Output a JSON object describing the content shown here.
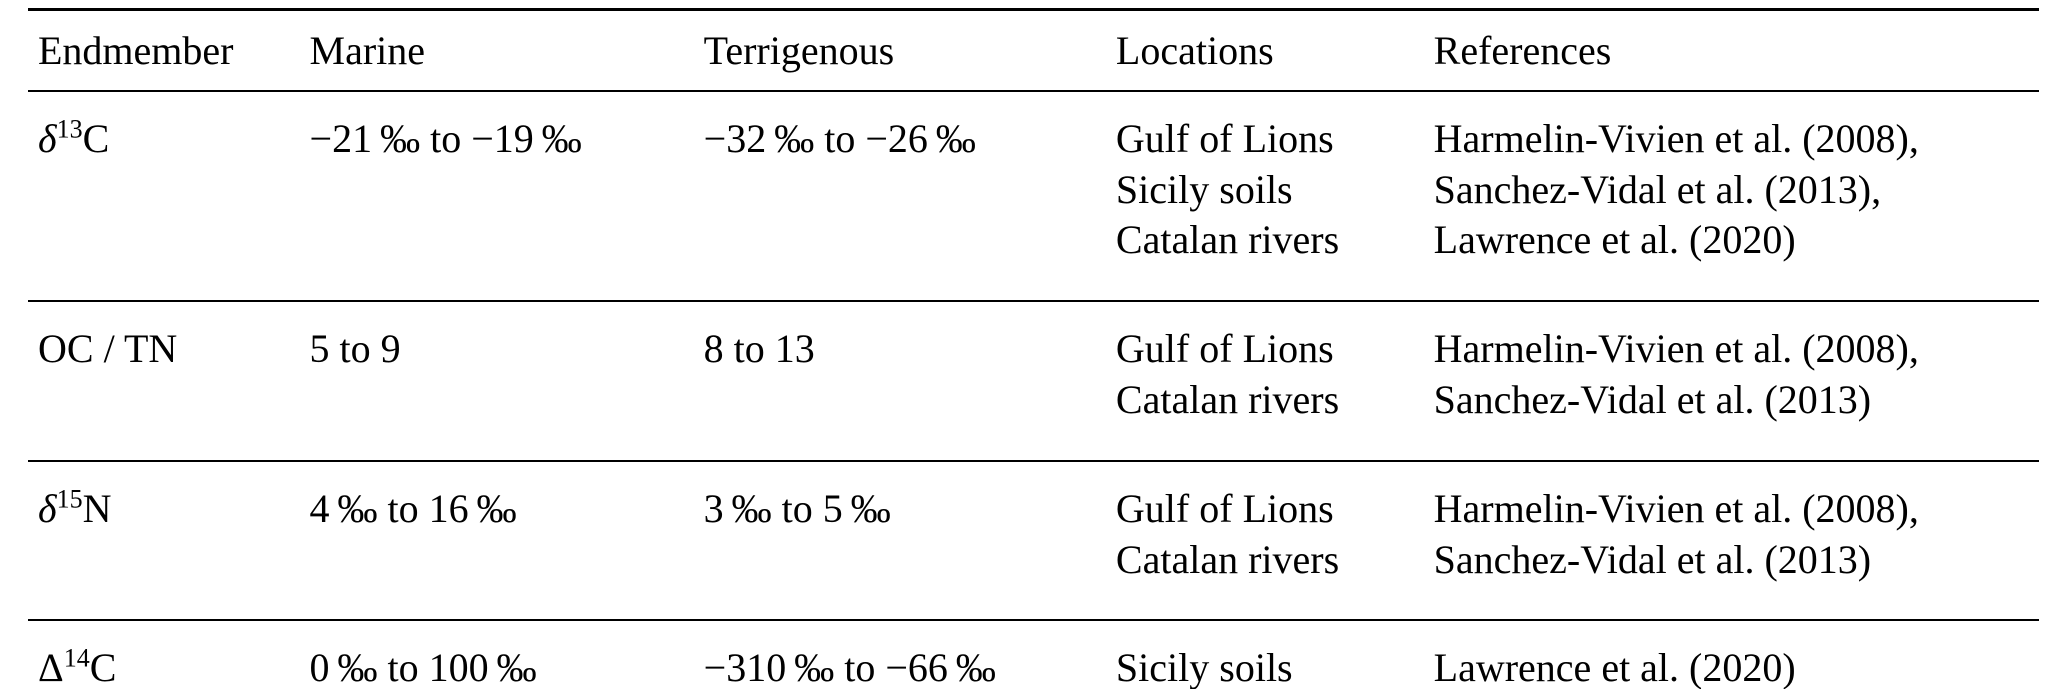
{
  "table": {
    "headers": {
      "endmember": "Endmember",
      "marine": "Marine",
      "terrigenous": "Terrigenous",
      "locations": "Locations",
      "references": "References"
    },
    "rows": [
      {
        "endmember": {
          "base": "δ",
          "sup": "13",
          "tail": "C"
        },
        "marine": "−21 ‰ to −19 ‰",
        "terrigenous": "−32 ‰ to −26 ‰",
        "locations": [
          "Gulf of Lions",
          "Sicily soils",
          "Catalan rivers"
        ],
        "references": [
          "Harmelin-Vivien et al. (2008),",
          "Sanchez-Vidal et al. (2013),",
          "Lawrence et al. (2020)"
        ]
      },
      {
        "endmember": {
          "base": "OC / TN",
          "sup": "",
          "tail": ""
        },
        "marine": "5 to 9",
        "terrigenous": "8 to 13",
        "locations": [
          "Gulf of Lions",
          "Catalan rivers"
        ],
        "references": [
          "Harmelin-Vivien et al. (2008),",
          "Sanchez-Vidal et al. (2013)"
        ]
      },
      {
        "endmember": {
          "base": "δ",
          "sup": "15",
          "tail": "N"
        },
        "marine": "4 ‰ to 16 ‰",
        "terrigenous": "3 ‰ to 5 ‰",
        "locations": [
          "Gulf of Lions",
          "Catalan rivers"
        ],
        "references": [
          "Harmelin-Vivien et al. (2008),",
          "Sanchez-Vidal et al. (2013)"
        ]
      },
      {
        "endmember": {
          "base": "Δ",
          "sup": "14",
          "tail": "C"
        },
        "marine": "0 ‰ to 100 ‰",
        "terrigenous": "−310 ‰ to −66 ‰",
        "locations": [
          "Sicily soils"
        ],
        "references": [
          "Lawrence et al. (2020)"
        ]
      }
    ]
  }
}
